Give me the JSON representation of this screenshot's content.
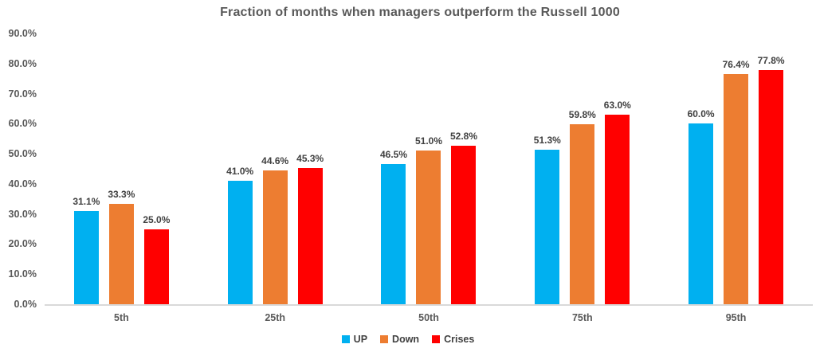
{
  "chart_data": {
    "type": "bar",
    "title": "Fraction of months when managers outperform the Russell 1000",
    "categories": [
      "5th",
      "25th",
      "50th",
      "75th",
      "95th"
    ],
    "series": [
      {
        "name": "UP",
        "color": "#00B0F0",
        "values": [
          31.1,
          41.0,
          46.5,
          51.3,
          60.0
        ],
        "labels": [
          "31.1%",
          "41.0%",
          "46.5%",
          "51.3%",
          "60.0%"
        ]
      },
      {
        "name": "Down",
        "color": "#ED7D31",
        "values": [
          33.3,
          44.6,
          51.0,
          59.8,
          76.4
        ],
        "labels": [
          "33.3%",
          "44.6%",
          "51.0%",
          "59.8%",
          "76.4%"
        ]
      },
      {
        "name": "Crises",
        "color": "#FF0000",
        "values": [
          25.0,
          45.3,
          52.8,
          63.0,
          77.8
        ],
        "labels": [
          "25.0%",
          "45.3%",
          "52.8%",
          "63.0%",
          "77.8%"
        ]
      }
    ],
    "y_ticks": [
      "0.0%",
      "10.0%",
      "20.0%",
      "30.0%",
      "40.0%",
      "50.0%",
      "60.0%",
      "70.0%",
      "80.0%",
      "90.0%"
    ],
    "y_tick_values": [
      0,
      10,
      20,
      30,
      40,
      50,
      60,
      70,
      80,
      90
    ],
    "ylim": [
      0,
      90
    ],
    "xlabel": "",
    "ylabel": "",
    "grid": false,
    "legend_position": "bottom",
    "colors": {
      "axis_line": "#d9d9d9",
      "axis_text": "#595959",
      "title_text": "#595959",
      "value_text": "#404040"
    }
  }
}
